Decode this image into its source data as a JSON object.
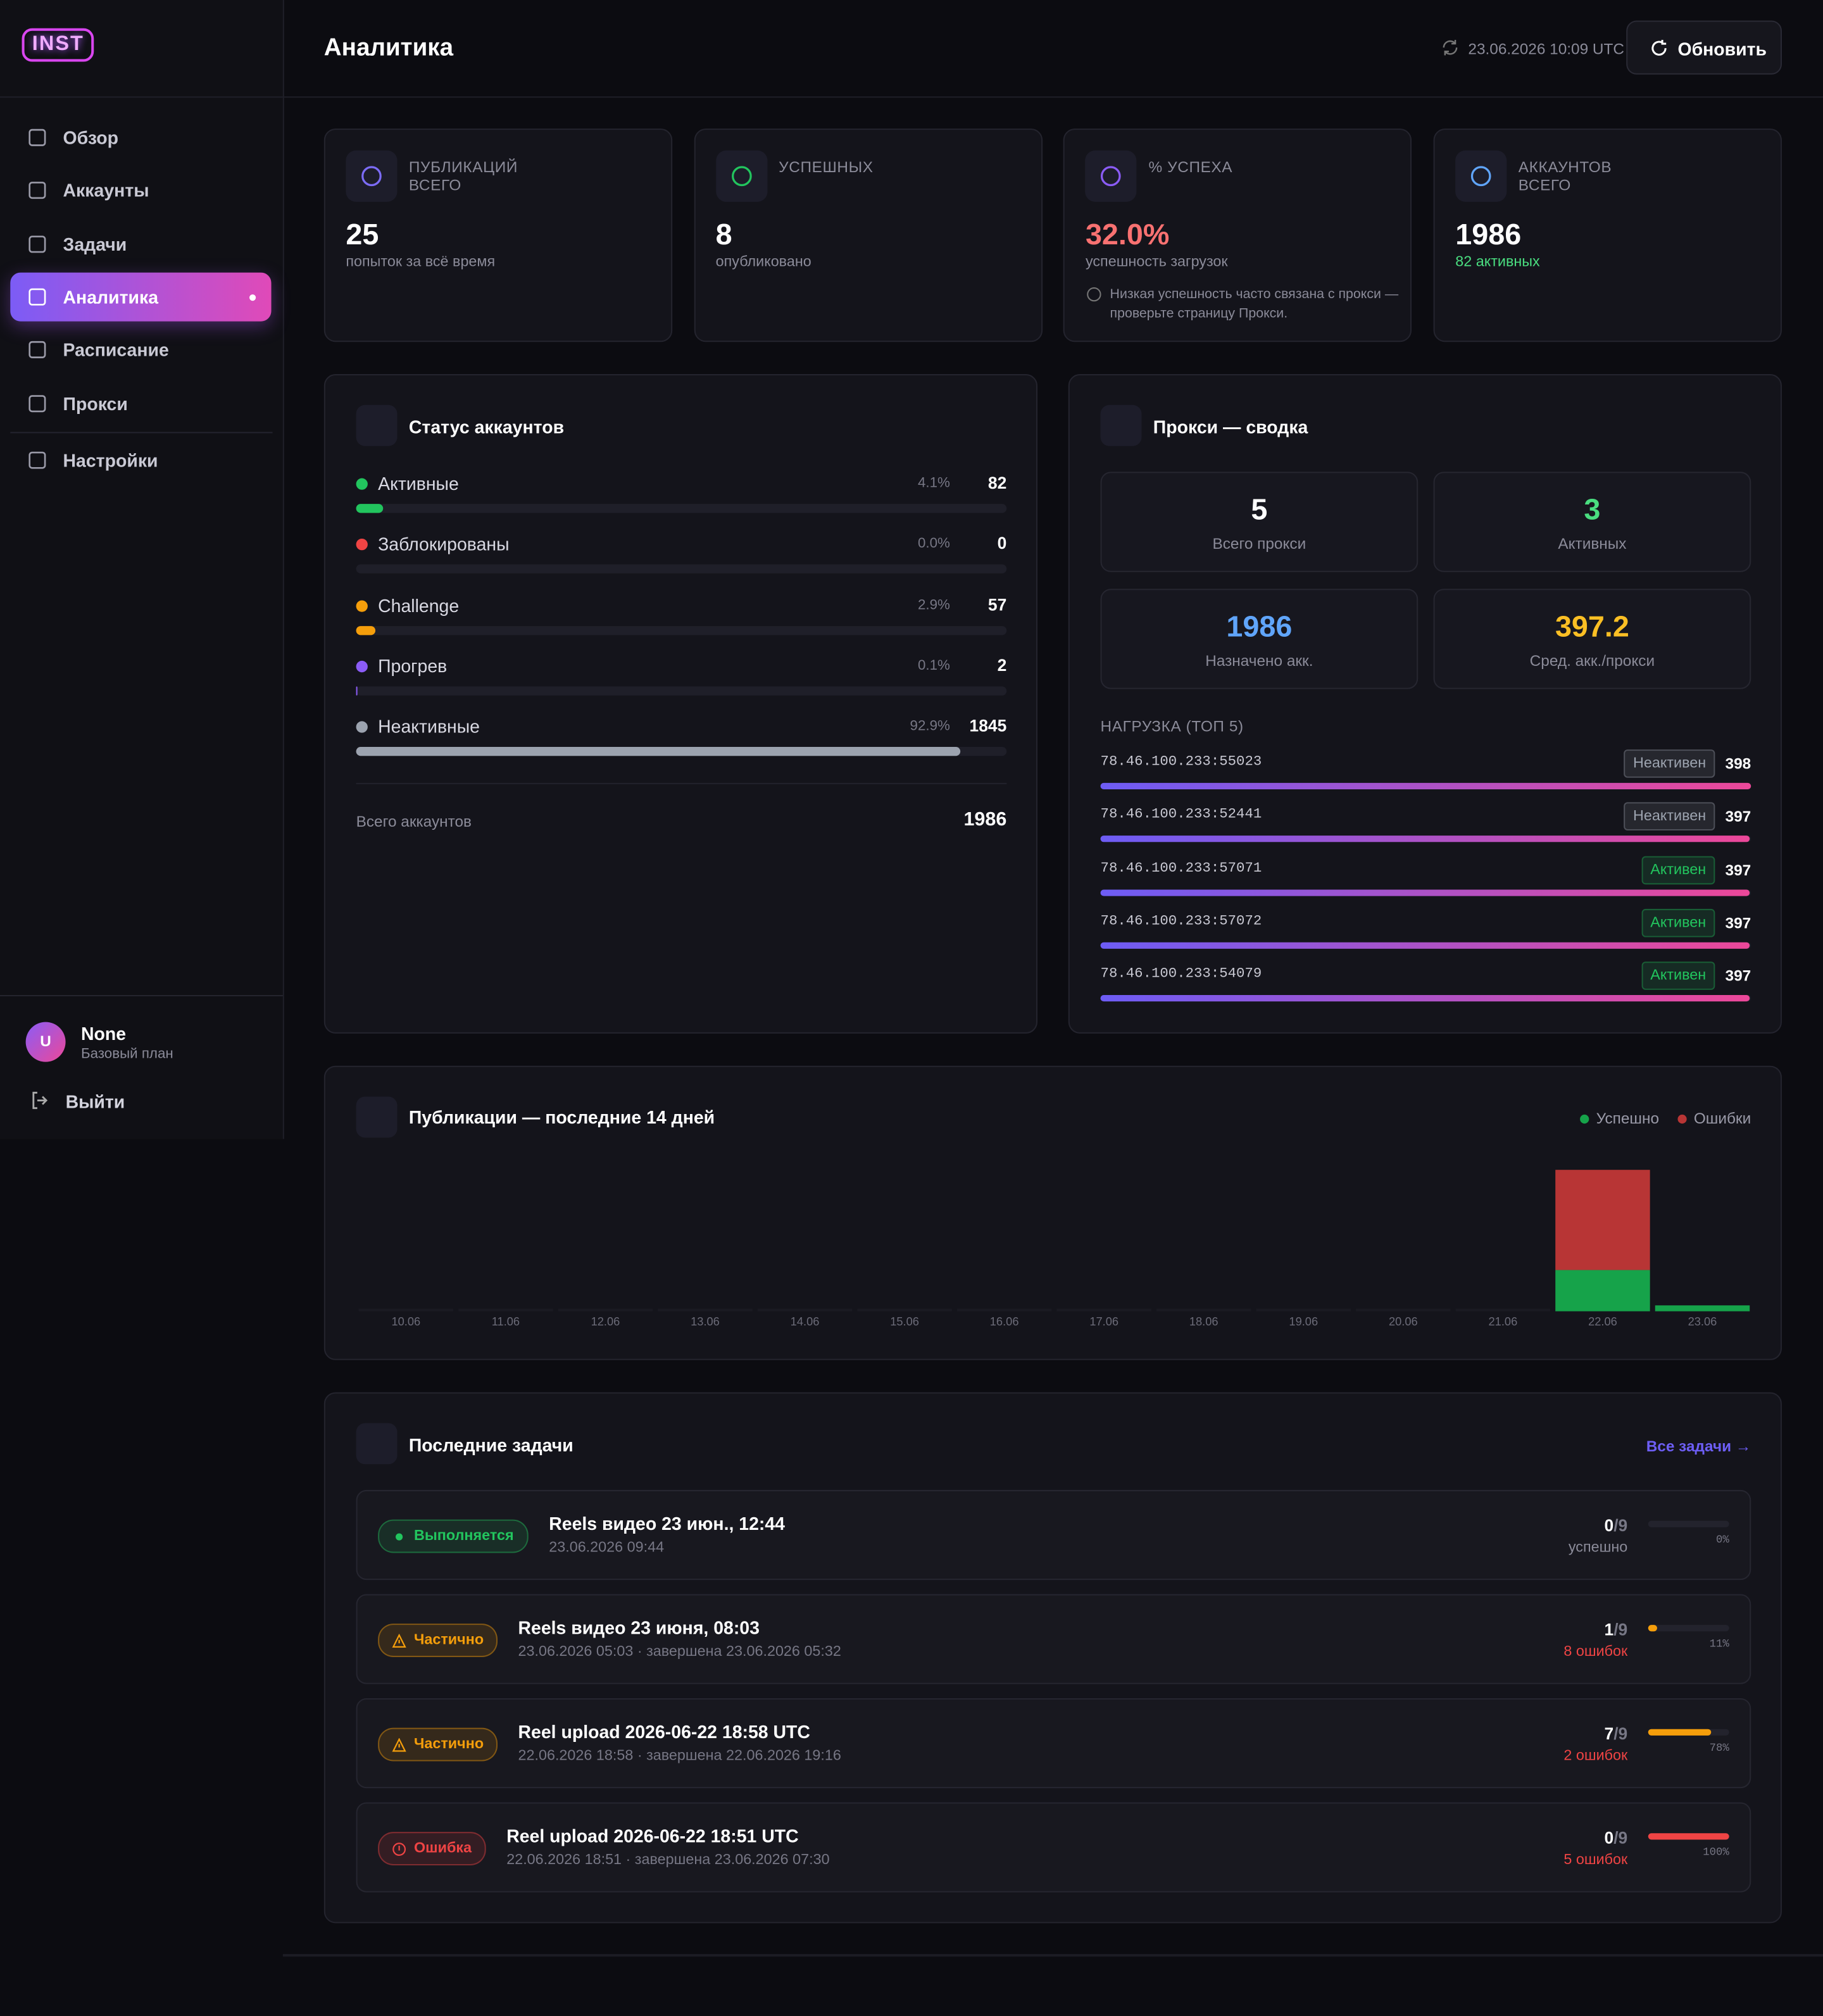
{
  "sidebar": {
    "logo": "INST",
    "nav": [
      "Обзор",
      "Аккаунты",
      "Задачи",
      "Аналитика",
      "Расписание",
      "Прокси",
      "Настройки"
    ],
    "active": 3,
    "user": {
      "avatar": "U",
      "name": "None",
      "plan": "Базовый план"
    },
    "logout": "Выйти"
  },
  "header": {
    "title": "Аналитика",
    "updated": "23.06.2026 10:09 UTC",
    "refresh": "Обновить"
  },
  "stats": [
    {
      "label": "ПУБЛИКАЦИЙ ВСЕГО",
      "value": 25,
      "sub": "попыток за всё время",
      "icon_color": "#7c6cf6"
    },
    {
      "label": "УСПЕШНЫХ",
      "value": 8,
      "sub": "опубликовано",
      "icon_color": "#22c55e"
    },
    {
      "label": "% УСПЕХА",
      "value": "32.0%",
      "sub": "успешность загрузок",
      "value_color": "#f87171",
      "icon_color": "#8b5cf6",
      "note": "Низкая успешность часто связана с прокси — проверьте страницу Прокси."
    },
    {
      "label": "АККАУНТОВ ВСЕГО",
      "value": 1986,
      "sub": "82 активных",
      "sub_color": "#4ade80",
      "icon_color": "#60a5fa"
    }
  ],
  "account_status": {
    "title": "Статус аккаунтов",
    "rows": [
      {
        "name": "Активные",
        "color": "#22c55e",
        "percent": {
          "value": 4.1,
          "label": "4.1%"
        },
        "count": 82
      },
      {
        "name": "Заблокированы",
        "color": "#ef4444",
        "percent": {
          "value": 0.0,
          "label": "0.0%"
        },
        "count": 0
      },
      {
        "name": "Challenge",
        "color": "#f59e0b",
        "percent": {
          "value": 2.9,
          "label": "2.9%"
        },
        "count": 57
      },
      {
        "name": "Прогрев",
        "color": "#8b5cf6",
        "percent": {
          "value": 0.1,
          "label": "0.1%"
        },
        "count": 2
      },
      {
        "name": "Неактивные",
        "color": "#9ca3af",
        "percent": {
          "value": 92.9,
          "label": "92.9%"
        },
        "count": 1845
      }
    ],
    "total_label": "Всего аккаунтов",
    "total": 1986
  },
  "proxy_summary": {
    "title": "Прокси — сводка",
    "tiles": [
      {
        "value": 5,
        "label": "Всего прокси",
        "color": "#ffffff"
      },
      {
        "value": 3,
        "label": "Активных",
        "color": "#4ade80"
      },
      {
        "value": 1986,
        "label": "Назначено акк.",
        "color": "#60a5fa"
      },
      {
        "value": 397.2,
        "label": "Сред. акк./прокси",
        "color": "#fbbf24"
      }
    ],
    "load_title": "НАГРУЗКА (ТОП 5)",
    "load": [
      {
        "address": "78.46.100.233:55023",
        "status": "Неактивен",
        "status_color": "#9ca3af",
        "count": 398
      },
      {
        "address": "78.46.100.233:52441",
        "status": "Неактивен",
        "status_color": "#9ca3af",
        "count": 397
      },
      {
        "address": "78.46.100.233:57071",
        "status": "Активен",
        "status_color": "#22c55e",
        "count": 397
      },
      {
        "address": "78.46.100.233:57072",
        "status": "Активен",
        "status_color": "#22c55e",
        "count": 397
      },
      {
        "address": "78.46.100.233:54079",
        "status": "Активен",
        "status_color": "#22c55e",
        "count": 397
      }
    ]
  },
  "chart_data": {
    "type": "bar",
    "stacked": true,
    "title": "Публикации — последние 14 дней",
    "categories": [
      "10.06",
      "11.06",
      "12.06",
      "13.06",
      "14.06",
      "15.06",
      "16.06",
      "17.06",
      "18.06",
      "19.06",
      "20.06",
      "21.06",
      "22.06",
      "23.06"
    ],
    "series": [
      {
        "name": "Успешно",
        "color": "#16a34a",
        "values": [
          0,
          0,
          0,
          0,
          0,
          0,
          0,
          0,
          0,
          0,
          0,
          0,
          7,
          1
        ]
      },
      {
        "name": "Ошибки",
        "color": "#b83535",
        "values": [
          0,
          0,
          0,
          0,
          0,
          0,
          0,
          0,
          0,
          0,
          0,
          0,
          17,
          0
        ]
      }
    ],
    "legend": "top-right"
  },
  "tasks": {
    "title": "Последние задачи",
    "all_link": "Все задачи →",
    "items": [
      {
        "status": "Выполняется",
        "icon": "dot",
        "color": "#22c55e",
        "title": "Reels видео 23 июн., 12:44",
        "meta": "23.06.2026 09:44",
        "done": 0,
        "total": 9,
        "result": "успешно",
        "result_color": "#8b8b99",
        "progress": {
          "value": 0,
          "label": "0%"
        }
      },
      {
        "status": "Частично",
        "icon": "warning",
        "color": "#f59e0b",
        "title": "Reels видео 23 июня, 08:03",
        "meta": "23.06.2026 05:03 · завершена 23.06.2026 05:32",
        "done": 1,
        "total": 9,
        "result": "8 ошибок",
        "result_color": "#ef4444",
        "progress": {
          "value": 11,
          "label": "11%"
        }
      },
      {
        "status": "Частично",
        "icon": "warning",
        "color": "#f59e0b",
        "title": "Reel upload 2026-06-22 18:58 UTC",
        "meta": "22.06.2026 18:58 · завершена 22.06.2026 19:16",
        "done": 7,
        "total": 9,
        "result": "2 ошибок",
        "result_color": "#ef4444",
        "progress": {
          "value": 78,
          "label": "78%"
        }
      },
      {
        "status": "Ошибка",
        "icon": "error",
        "color": "#ef4444",
        "title": "Reel upload 2026-06-22 18:51 UTC",
        "meta": "22.06.2026 18:51 · завершена 23.06.2026 07:30",
        "done": 0,
        "total": 9,
        "result": "5 ошибок",
        "result_color": "#ef4444",
        "progress": {
          "value": 100,
          "label": "100%"
        }
      }
    ]
  }
}
